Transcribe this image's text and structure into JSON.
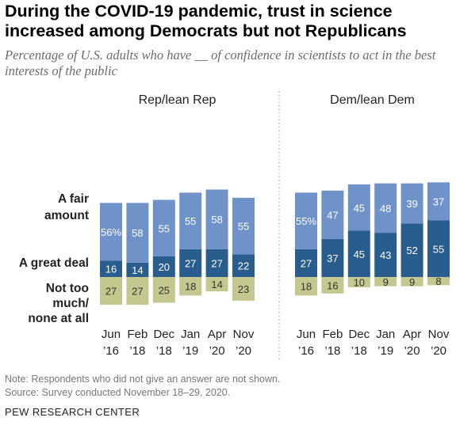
{
  "title": "During the COVID-19 pandemic, trust in science increased among Democrats but not Republicans",
  "subtitle": "Percentage of U.S. adults who have __ of confidence in scientists to act in the best interests of the public",
  "note": "Note: Respondents who did not give an answer are not shown.",
  "source": "Source: Survey conducted November 18–29, 2020.",
  "brand": "PEW RESEARCH CENTER",
  "colors": {
    "fair_amount": "#6f93c8",
    "great_deal": "#285d8d",
    "not_too_much": "#c5c88e"
  },
  "chart_data": {
    "type": "bar",
    "stacked": "diverging",
    "row_labels": {
      "fair_amount": [
        "A fair",
        "amount"
      ],
      "great_deal": [
        "A great deal"
      ],
      "not_too_much": [
        "Not too",
        "much/",
        "none at all"
      ]
    },
    "categories": [
      [
        "Jun",
        "’16"
      ],
      [
        "Feb",
        "’18"
      ],
      [
        "Dec",
        "’18"
      ],
      [
        "Jan",
        "’19"
      ],
      [
        "Apr",
        "’20"
      ],
      [
        "Nov",
        "’20"
      ]
    ],
    "panels": [
      {
        "title": "Rep/lean Rep",
        "series": [
          {
            "key": "great_deal",
            "values": [
              16,
              14,
              20,
              27,
              27,
              22
            ],
            "labels": [
              "16",
              "14",
              "20",
              "27",
              "27",
              "22"
            ]
          },
          {
            "key": "fair_amount",
            "values": [
              56,
              58,
              55,
              55,
              58,
              55
            ],
            "labels": [
              "56%",
              "58",
              "55",
              "55",
              "58",
              "55"
            ]
          },
          {
            "key": "not_too_much",
            "values": [
              27,
              27,
              25,
              18,
              14,
              23
            ],
            "labels": [
              "27",
              "27",
              "25",
              "18",
              "14",
              "23"
            ]
          }
        ]
      },
      {
        "title": "Dem/lean Dem",
        "series": [
          {
            "key": "great_deal",
            "values": [
              27,
              37,
              45,
              43,
              52,
              55
            ],
            "labels": [
              "27",
              "37",
              "45",
              "43",
              "52",
              "55"
            ]
          },
          {
            "key": "fair_amount",
            "values": [
              55,
              47,
              45,
              48,
              39,
              37
            ],
            "labels": [
              "55%",
              "47",
              "45",
              "48",
              "39",
              "37"
            ]
          },
          {
            "key": "not_too_much",
            "values": [
              18,
              16,
              10,
              9,
              9,
              8
            ],
            "labels": [
              "18",
              "16",
              "10",
              "9",
              "9",
              "8"
            ]
          }
        ]
      }
    ]
  }
}
